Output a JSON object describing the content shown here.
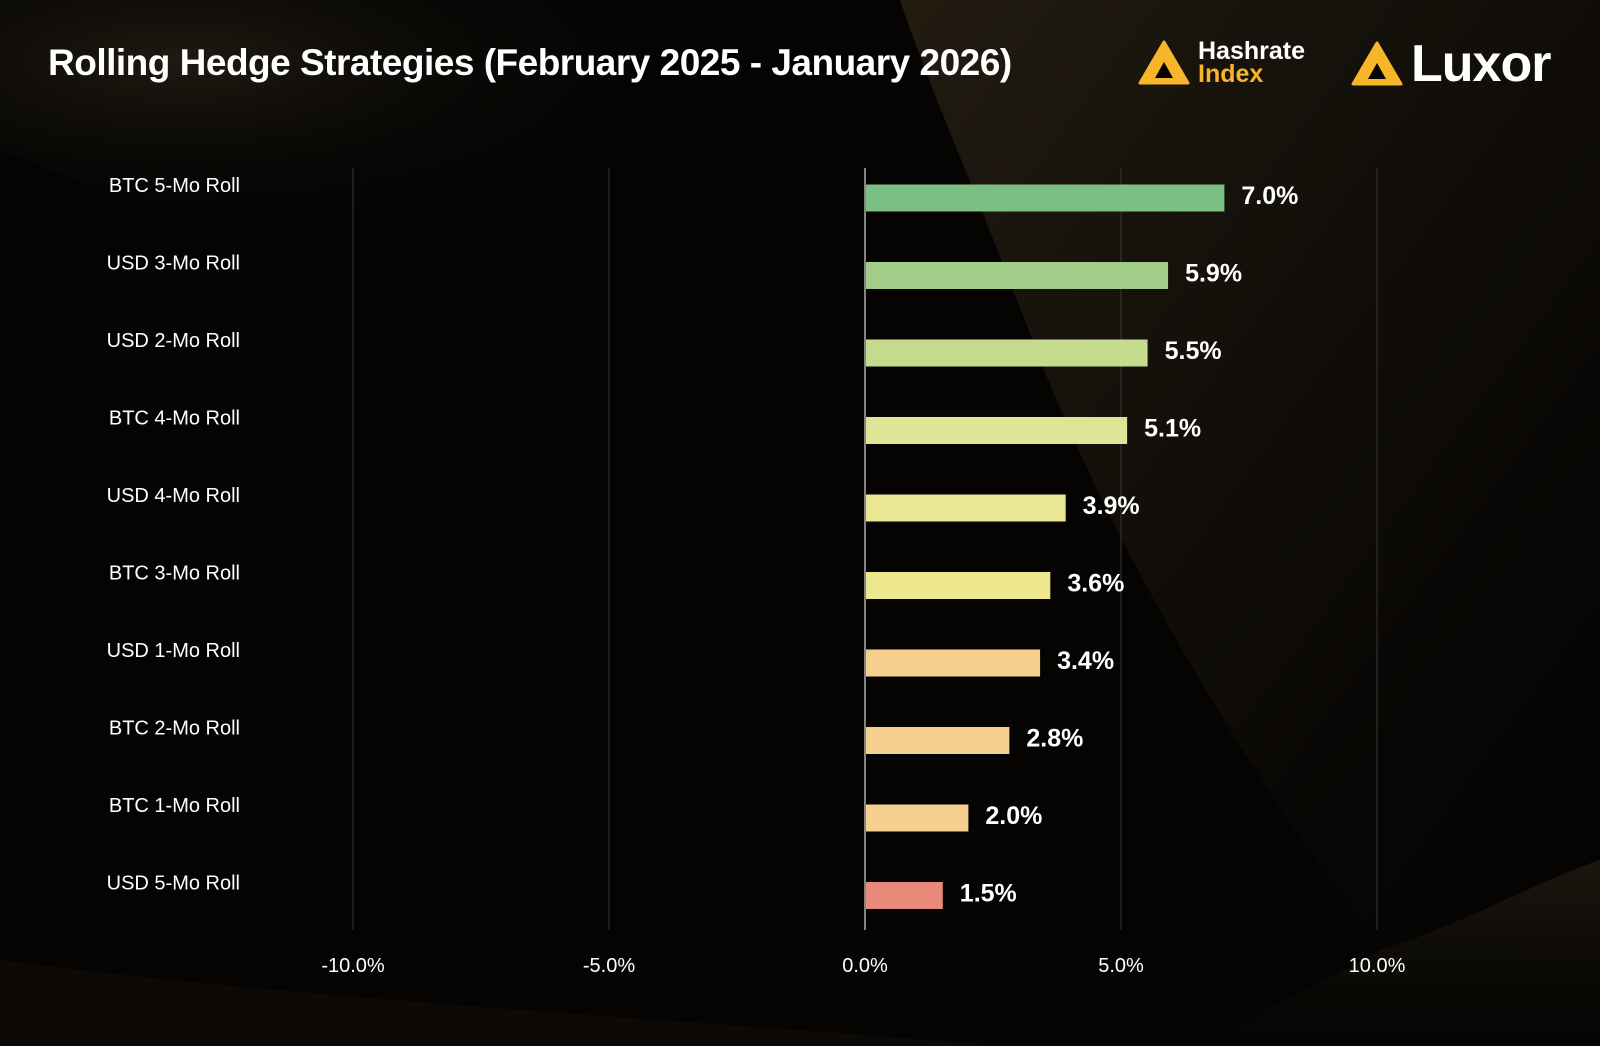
{
  "header": {
    "title": "Rolling Hedge Strategies (February  2025 - January 2026)",
    "logos": [
      {
        "name": "hashrate-index",
        "line1": "Hashrate",
        "line2": "Index",
        "icon": "hashrate-index-icon"
      },
      {
        "name": "luxor",
        "text": "Luxor",
        "icon": "luxor-icon"
      }
    ]
  },
  "colors": {
    "accent": "#f7b52a",
    "background": "#050403"
  },
  "chart_data": {
    "type": "bar",
    "orientation": "horizontal",
    "categories": [
      "BTC 5-Mo Roll",
      "USD 3-Mo Roll",
      "USD 2-Mo Roll",
      "BTC 4-Mo Roll",
      "USD 4-Mo Roll",
      "BTC 3-Mo Roll",
      "USD 1-Mo Roll",
      "BTC 2-Mo Roll",
      "BTC 1-Mo Roll",
      "USD 5-Mo Roll"
    ],
    "values": [
      7.0,
      5.9,
      5.5,
      5.1,
      3.9,
      3.6,
      3.4,
      2.8,
      2.0,
      1.5
    ],
    "data_labels": [
      "7.0%",
      "5.9%",
      "5.5%",
      "5.1%",
      "3.9%",
      "3.6%",
      "3.4%",
      "2.8%",
      "2.0%",
      "1.5%"
    ],
    "bar_colors": [
      "#7cbf83",
      "#a2cd88",
      "#c5dc8f",
      "#dde597",
      "#ebe691",
      "#ede88d",
      "#f5cf8e",
      "#f5cf8e",
      "#f5cf8e",
      "#e98a79"
    ],
    "xlim": [
      -10,
      10
    ],
    "xticks": [
      -10,
      -5,
      0,
      5,
      10
    ],
    "xtick_labels": [
      "-10.0%",
      "-5.0%",
      "0.0%",
      "5.0%",
      "10.0%"
    ],
    "grid": true,
    "title": "Rolling Hedge Strategies (February  2025 - January 2026)",
    "xlabel": "",
    "ylabel": ""
  }
}
